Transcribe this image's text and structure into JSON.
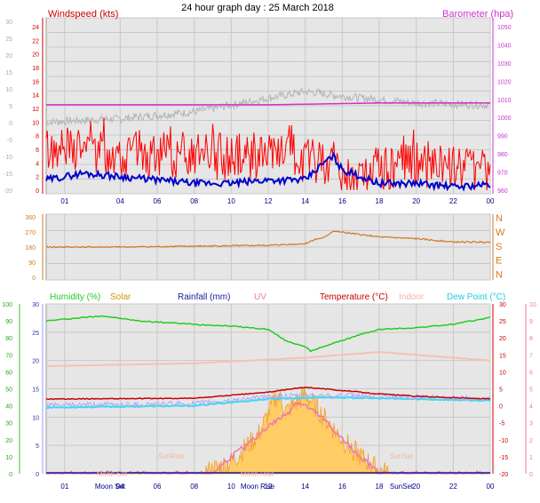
{
  "header": {
    "title": "24 hour graph day : 25 March 2018"
  },
  "x_ticks": [
    "01",
    "04",
    "06",
    "08",
    "10",
    "12",
    "14",
    "16",
    "18",
    "20",
    "22",
    "00"
  ],
  "colors": {
    "wind_red": "#ff0000",
    "wind_avg": "#0000cc",
    "baro": "#cc33cc",
    "temp": "#c80000",
    "indoor": "#f4c2b0",
    "dew": "#33ddee",
    "humidity": "#22cc22",
    "solar": "#f0a030",
    "uv": "#ee77aa",
    "rain": "#1a1aa0",
    "winddir": "#d07a20",
    "panel_bg": "#e6e6e6"
  },
  "chart_data": [
    {
      "type": "line",
      "panel": "wind-barometer",
      "labels": {
        "left": "Windspeed (kts)",
        "right": "Barometer (hpa)"
      },
      "y_left_ticks": [
        0,
        2,
        4,
        6,
        8,
        10,
        12,
        14,
        16,
        18,
        20,
        22,
        24
      ],
      "y_right_ticks": [
        980,
        990,
        1000,
        1010,
        1020,
        1030,
        1040,
        1050
      ],
      "y_right_ticks_inner": [
        960,
        970,
        980,
        990,
        1000,
        1010,
        1020,
        1030,
        1040,
        1050
      ],
      "y_outer_ticks": [
        30,
        25,
        20,
        15,
        10,
        5,
        0,
        -5,
        -10,
        -15,
        -20
      ],
      "series": [
        {
          "key": "barometer",
          "x": [
            0,
            6,
            12,
            18,
            24
          ],
          "values": [
            1007,
            1007,
            1007,
            1008,
            1008
          ]
        },
        {
          "key": "grey",
          "x": [
            0,
            4,
            8,
            12,
            14,
            16,
            20,
            24
          ],
          "values": [
            10,
            10.5,
            11.5,
            13.5,
            14.5,
            13.8,
            12.8,
            12.5
          ]
        },
        {
          "key": "gust",
          "x": [
            0,
            4,
            8,
            12,
            14,
            15.5,
            16,
            18,
            20,
            24
          ],
          "values": [
            6,
            5.5,
            5,
            5,
            4,
            4.5,
            1,
            3,
            4,
            3
          ]
        },
        {
          "key": "avg",
          "x": [
            0,
            2,
            4,
            6,
            8,
            10,
            12,
            14,
            15,
            15.5,
            16,
            17,
            18,
            20,
            22,
            24
          ],
          "values": [
            1.5,
            2.5,
            2,
            1.5,
            1,
            1,
            1.5,
            1.5,
            4,
            5,
            3,
            2,
            1,
            1,
            0.5,
            0.8
          ]
        }
      ]
    },
    {
      "type": "line",
      "panel": "wind-direction",
      "y_ticks": [
        0,
        90,
        180,
        270,
        360
      ],
      "compass": [
        "N",
        "W",
        "S",
        "E",
        "N"
      ],
      "series": [
        {
          "key": "direction",
          "x": [
            0,
            4,
            8,
            12,
            14,
            14.5,
            15,
            15.5,
            18,
            20,
            22,
            24
          ],
          "values": [
            180,
            180,
            185,
            190,
            200,
            225,
            235,
            275,
            240,
            230,
            210,
            210
          ]
        }
      ]
    },
    {
      "type": "line",
      "panel": "multi",
      "labels": {
        "humidity": "Humidity (%)",
        "solar": "Solar",
        "rainfall": "Rainfall (mm)",
        "uv": "UV",
        "temperature": "Temperature (°C)",
        "indoor": "Indoor",
        "dewpoint": "Dew Point (°C)"
      },
      "y_left_ticks": [
        0,
        10,
        20,
        30,
        40,
        50,
        60,
        70,
        80,
        90,
        100
      ],
      "y_inner_ticks": [
        0,
        5,
        10,
        15,
        20,
        25,
        30
      ],
      "y_right_ticks": [
        -20,
        -15,
        -10,
        -5,
        0,
        5,
        10,
        15,
        20,
        25,
        30
      ],
      "y_far_right_ticks": [
        0,
        1,
        2,
        3,
        4,
        5,
        6,
        7,
        8,
        9,
        10
      ],
      "series": [
        {
          "key": "humidity",
          "x": [
            0,
            3,
            5,
            8,
            10,
            12,
            13,
            14,
            14.3,
            15,
            17,
            18,
            20,
            22,
            24
          ],
          "values": [
            90,
            93,
            90,
            88,
            87,
            85,
            78,
            75,
            72,
            75,
            82,
            85,
            86,
            88,
            92
          ]
        },
        {
          "key": "indoor",
          "x": [
            0,
            8,
            14,
            18,
            24
          ],
          "values": [
            19,
            19.5,
            20.5,
            21.5,
            20
          ]
        },
        {
          "key": "temperature",
          "x": [
            0,
            8,
            12,
            14,
            16,
            18,
            20,
            24
          ],
          "values": [
            2,
            2.2,
            4,
            5.5,
            4.5,
            3.5,
            2.8,
            2
          ]
        },
        {
          "key": "dewpoint",
          "x": [
            0,
            8,
            12,
            15,
            18,
            24
          ],
          "values": [
            -0.5,
            0,
            2,
            2.5,
            2.2,
            1.5
          ]
        },
        {
          "key": "solar",
          "x": [
            0,
            8.5,
            10,
            11.5,
            12.5,
            13,
            14,
            15,
            16,
            17,
            18,
            18.5,
            24
          ],
          "values": [
            0,
            0,
            2,
            7,
            14,
            11,
            14,
            10,
            6,
            3,
            0.5,
            0,
            0
          ]
        },
        {
          "key": "uv",
          "x": [
            0,
            9,
            10,
            11,
            12,
            13,
            13.5,
            14,
            15,
            16,
            17,
            18,
            24
          ],
          "values": [
            0,
            0,
            1,
            1.8,
            2.8,
            3.5,
            4.2,
            4,
            3.2,
            2,
            1,
            0,
            0
          ]
        }
      ],
      "astro": {
        "moon_set": "Moon Set",
        "sunrise": "SunRise",
        "moon_rise": "Moon Rise",
        "sunset": "SunSet"
      }
    }
  ]
}
